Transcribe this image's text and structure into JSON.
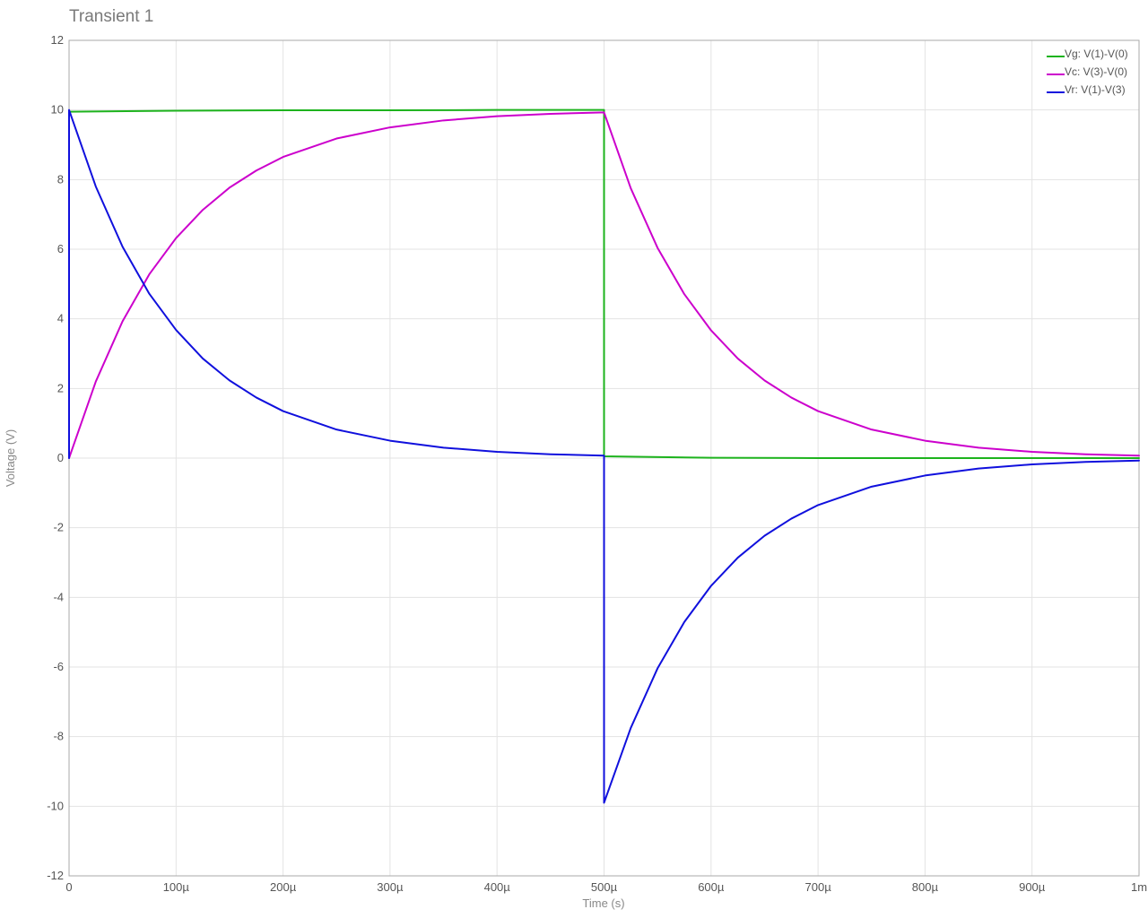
{
  "chart_data": {
    "type": "line",
    "title": "Transient 1",
    "xlabel": "Time (s)",
    "ylabel": "Voltage (V)",
    "xlim": [
      0,
      0.001
    ],
    "ylim": [
      -12,
      12
    ],
    "grid": true,
    "legend_position": "top-right",
    "x_ticks": [
      {
        "value": 0,
        "label": "0"
      },
      {
        "value": 0.0001,
        "label": "100µ"
      },
      {
        "value": 0.0002,
        "label": "200µ"
      },
      {
        "value": 0.0003,
        "label": "300µ"
      },
      {
        "value": 0.0004,
        "label": "400µ"
      },
      {
        "value": 0.0005,
        "label": "500µ"
      },
      {
        "value": 0.0006,
        "label": "600µ"
      },
      {
        "value": 0.0007,
        "label": "700µ"
      },
      {
        "value": 0.0008,
        "label": "800µ"
      },
      {
        "value": 0.0009,
        "label": "900µ"
      },
      {
        "value": 0.001,
        "label": "1m"
      }
    ],
    "y_ticks": [
      {
        "value": 12,
        "label": "12"
      },
      {
        "value": 10,
        "label": "10"
      },
      {
        "value": 8,
        "label": "8"
      },
      {
        "value": 6,
        "label": "6"
      },
      {
        "value": 4,
        "label": "4"
      },
      {
        "value": 2,
        "label": "2"
      },
      {
        "value": 0,
        "label": "0"
      },
      {
        "value": -2,
        "label": "-2"
      },
      {
        "value": -4,
        "label": "-4"
      },
      {
        "value": -6,
        "label": "-6"
      },
      {
        "value": -8,
        "label": "-8"
      },
      {
        "value": -10,
        "label": "-10"
      },
      {
        "value": -12,
        "label": "-12"
      }
    ],
    "series": [
      {
        "name": "Vg: V(1)-V(0)",
        "color": "#1db31d",
        "x": [
          0,
          0,
          0.0001,
          0.0002,
          0.0003,
          0.0004,
          0.0005,
          0.0005,
          0.0006,
          0.0007,
          0.0008,
          0.0009,
          0.001
        ],
        "y": [
          0,
          9.95,
          9.98,
          9.99,
          9.99,
          10.0,
          10.0,
          0.05,
          0.01,
          0.0,
          0.0,
          0.0,
          0.0
        ]
      },
      {
        "name": "Vc: V(3)-V(0)",
        "color": "#cc00cc",
        "x": [
          0,
          2.5e-05,
          5e-05,
          7.5e-05,
          0.0001,
          0.000125,
          0.00015,
          0.000175,
          0.0002,
          0.00025,
          0.0003,
          0.00035,
          0.0004,
          0.00045,
          0.0005,
          0.000525,
          0.00055,
          0.000575,
          0.0006,
          0.000625,
          0.00065,
          0.000675,
          0.0007,
          0.00075,
          0.0008,
          0.00085,
          0.0009,
          0.00095,
          0.001
        ],
        "y": [
          0,
          2.2,
          3.93,
          5.28,
          6.32,
          7.13,
          7.77,
          8.26,
          8.65,
          9.18,
          9.5,
          9.7,
          9.82,
          9.89,
          9.93,
          7.75,
          6.04,
          4.71,
          3.67,
          2.86,
          2.23,
          1.74,
          1.35,
          0.82,
          0.5,
          0.3,
          0.18,
          0.11,
          0.07
        ]
      },
      {
        "name": "Vr: V(1)-V(3)",
        "color": "#1010dd",
        "x": [
          0,
          0,
          2.5e-05,
          5e-05,
          7.5e-05,
          0.0001,
          0.000125,
          0.00015,
          0.000175,
          0.0002,
          0.00025,
          0.0003,
          0.00035,
          0.0004,
          0.00045,
          0.0005,
          0.0005,
          0.000525,
          0.00055,
          0.000575,
          0.0006,
          0.000625,
          0.00065,
          0.000675,
          0.0007,
          0.00075,
          0.0008,
          0.00085,
          0.0009,
          0.00095,
          0.001
        ],
        "y": [
          0,
          10.0,
          7.8,
          6.07,
          4.72,
          3.68,
          2.86,
          2.23,
          1.74,
          1.35,
          0.82,
          0.5,
          0.3,
          0.18,
          0.11,
          0.07,
          -9.9,
          -7.75,
          -6.04,
          -4.71,
          -3.67,
          -2.86,
          -2.23,
          -1.74,
          -1.35,
          -0.82,
          -0.5,
          -0.3,
          -0.18,
          -0.11,
          -0.07
        ]
      }
    ]
  }
}
